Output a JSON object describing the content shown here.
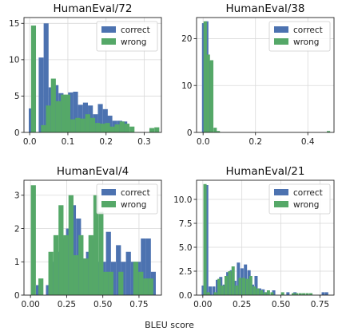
{
  "figure": {
    "xlabel": "BLEU score"
  },
  "colors": {
    "correct": "#4c72b0",
    "wrong": "#55a868"
  },
  "chart_data": [
    {
      "type": "bar",
      "title": "HumanEval/72",
      "xlim": [
        -0.015,
        0.345
      ],
      "ylim": [
        0,
        15.8
      ],
      "xticks": [
        0.0,
        0.1,
        0.2,
        0.3
      ],
      "yticks": [
        0,
        5,
        10,
        15
      ],
      "binwidth": 0.0129,
      "legend": "upper right",
      "grid": true,
      "series": [
        {
          "name": "correct",
          "x": [
            0.004,
            0.03,
            0.043,
            0.056,
            0.069,
            0.082,
            0.094,
            0.107,
            0.12,
            0.133,
            0.146,
            0.159,
            0.172,
            0.185,
            0.198,
            0.21,
            0.223,
            0.236,
            0.249,
            0.262,
            0.275,
            0.288,
            0.301,
            0.314,
            0.327
          ],
          "values": [
            3.3,
            10.3,
            15.0,
            6.2,
            6.5,
            5.4,
            1.4,
            5.5,
            5.6,
            3.8,
            4.1,
            3.7,
            2.5,
            3.9,
            3.2,
            2.3,
            1.6,
            1.6,
            1.5,
            0.0,
            0.0,
            0.0,
            0.0,
            0.0,
            0.0
          ]
        },
        {
          "name": "wrong",
          "x": [
            0.01,
            0.036,
            0.049,
            0.062,
            0.075,
            0.088,
            0.1,
            0.113,
            0.126,
            0.139,
            0.152,
            0.165,
            0.178,
            0.191,
            0.204,
            0.216,
            0.229,
            0.242,
            0.255,
            0.268,
            0.281,
            0.294,
            0.307,
            0.32,
            0.333
          ],
          "values": [
            14.7,
            1.0,
            3.7,
            7.4,
            4.3,
            5.2,
            5.2,
            1.8,
            2.0,
            1.9,
            2.5,
            2.0,
            1.3,
            1.2,
            1.3,
            0.8,
            1.1,
            1.5,
            1.2,
            0.8,
            0.0,
            0.0,
            0.0,
            0.6,
            0.7
          ]
        }
      ]
    },
    {
      "type": "bar",
      "title": "HumanEval/38",
      "xlim": [
        -0.025,
        0.5
      ],
      "ylim": [
        0,
        24.5
      ],
      "xticks": [
        0.0,
        0.2,
        0.4
      ],
      "yticks": [
        0,
        10,
        20
      ],
      "binwidth": 0.0125,
      "legend": "upper right",
      "grid": true,
      "series": [
        {
          "name": "correct",
          "x": [
            0.002,
            0.014,
            0.027,
            0.04,
            0.052
          ],
          "values": [
            23.3,
            23.7,
            15.3,
            0.0,
            0.0
          ]
        },
        {
          "name": "wrong",
          "x": [
            0.008,
            0.02,
            0.033,
            0.046,
            0.058,
            0.479
          ],
          "values": [
            23.7,
            16.6,
            15.4,
            1.0,
            0.3,
            0.3
          ]
        }
      ]
    },
    {
      "type": "bar",
      "title": "HumanEval/4",
      "xlim": [
        -0.045,
        0.905
      ],
      "ylim": [
        0,
        3.45
      ],
      "xticks": [
        0.0,
        0.25,
        0.5,
        0.75
      ],
      "yticks": [
        0,
        1,
        2,
        3
      ],
      "binwidth": 0.0345,
      "legend": "upper right",
      "grid": true,
      "series": [
        {
          "name": "correct",
          "x": [
            0.055,
            0.124,
            0.159,
            0.194,
            0.228,
            0.263,
            0.297,
            0.332,
            0.366,
            0.401,
            0.435,
            0.47,
            0.504,
            0.539,
            0.573,
            0.608,
            0.642,
            0.677,
            0.711,
            0.746,
            0.78,
            0.815,
            0.849
          ],
          "values": [
            0.3,
            0.3,
            1.0,
            1.3,
            1.7,
            2.0,
            2.7,
            2.3,
            1.1,
            1.3,
            1.7,
            1.0,
            1.0,
            1.9,
            1.0,
            1.5,
            1.0,
            1.3,
            1.0,
            1.0,
            1.7,
            1.7,
            0.7
          ]
        },
        {
          "name": "wrong",
          "x": [
            0.02,
            0.072,
            0.141,
            0.176,
            0.211,
            0.245,
            0.28,
            0.314,
            0.349,
            0.383,
            0.418,
            0.452,
            0.487,
            0.521,
            0.556,
            0.59,
            0.625,
            0.659,
            0.694,
            0.728,
            0.763,
            0.797,
            0.832
          ],
          "values": [
            3.3,
            0.5,
            1.3,
            1.8,
            2.7,
            1.8,
            3.0,
            1.2,
            1.8,
            1.1,
            1.8,
            3.0,
            2.5,
            0.7,
            0.7,
            0.0,
            0.7,
            0.0,
            0.0,
            1.0,
            0.7,
            0.5,
            0.5
          ]
        }
      ]
    },
    {
      "type": "bar",
      "title": "HumanEval/21",
      "xlim": [
        -0.04,
        0.84
      ],
      "ylim": [
        0,
        12.0
      ],
      "xticks": [
        0.0,
        0.25,
        0.5,
        0.75
      ],
      "yticks": [
        0.0,
        2.5,
        5.0,
        7.5,
        10.0
      ],
      "binwidth": 0.0205,
      "legend": "upper right",
      "grid": true,
      "series": [
        {
          "name": "correct",
          "x": [
            0.003,
            0.025,
            0.047,
            0.07,
            0.093,
            0.115,
            0.138,
            0.16,
            0.183,
            0.205,
            0.228,
            0.251,
            0.273,
            0.296,
            0.318,
            0.341,
            0.364,
            0.386,
            0.409,
            0.431,
            0.454,
            0.477,
            0.499,
            0.522,
            0.545,
            0.567,
            0.59,
            0.612,
            0.635,
            0.658,
            0.68,
            0.703,
            0.725,
            0.748,
            0.771,
            0.793
          ],
          "values": [
            1.0,
            11.5,
            0.9,
            0.9,
            1.6,
            1.9,
            1.1,
            2.4,
            2.6,
            1.5,
            3.4,
            2.8,
            3.2,
            2.6,
            1.1,
            2.0,
            0.7,
            0.6,
            0.3,
            0.0,
            0.5,
            0.0,
            0.0,
            0.0,
            0.3,
            0.0,
            0.3,
            0.0,
            0.0,
            0.0,
            0.0,
            0.0,
            0.0,
            0.0,
            0.3,
            0.3
          ]
        },
        {
          "name": "wrong",
          "x": [
            0.014,
            0.036,
            0.059,
            0.081,
            0.104,
            0.126,
            0.149,
            0.172,
            0.194,
            0.217,
            0.239,
            0.262,
            0.285,
            0.307,
            0.33,
            0.352,
            0.375,
            0.398,
            0.42,
            0.443,
            0.466,
            0.488,
            0.511,
            0.533,
            0.556,
            0.579,
            0.601,
            0.624,
            0.646,
            0.669,
            0.692,
            0.714,
            0.737,
            0.759,
            0.782
          ],
          "values": [
            11.6,
            0.3,
            0.0,
            0.3,
            1.7,
            1.0,
            2.0,
            2.5,
            3.0,
            1.0,
            1.8,
            1.8,
            1.7,
            2.0,
            0.9,
            0.7,
            0.5,
            0.3,
            0.5,
            0.3,
            0.0,
            0.0,
            0.3,
            0.0,
            0.0,
            0.2,
            0.2,
            0.2,
            0.2,
            0.2,
            0.2,
            0.0,
            0.0,
            0.0,
            0.0
          ]
        }
      ]
    }
  ]
}
